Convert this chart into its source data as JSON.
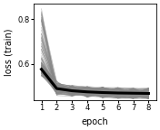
{
  "title": "",
  "xlabel": "epoch",
  "ylabel": "loss (train)",
  "xlim": [
    0.5,
    8.5
  ],
  "ylim": [
    0.435,
    0.87
  ],
  "yticks": [
    0.6,
    0.8
  ],
  "xticks": [
    1,
    2,
    3,
    4,
    5,
    6,
    7,
    8
  ],
  "epochs": [
    1,
    2,
    3,
    4,
    5,
    6,
    7,
    8
  ],
  "mean_loss": [
    0.575,
    0.488,
    0.478,
    0.473,
    0.47,
    0.468,
    0.467,
    0.466
  ],
  "bg_color": "#ffffff",
  "line_color_individual": "#888888",
  "line_color_mean": "#000000",
  "mean_linewidth": 2.2,
  "individual_linewidth": 0.4,
  "individual_alpha": 0.6,
  "n_lines_high": 60,
  "n_lines_band": 80
}
